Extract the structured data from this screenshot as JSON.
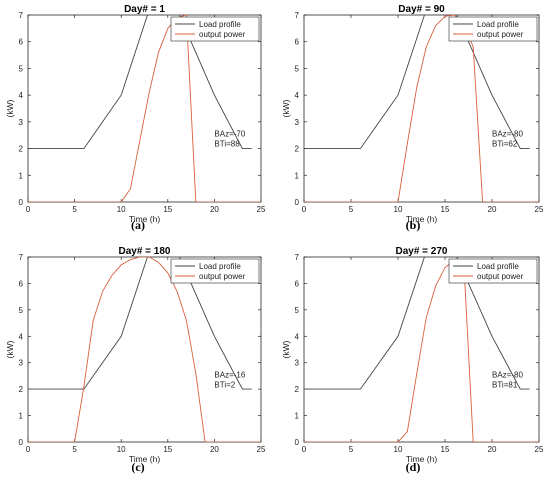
{
  "chart_data": [
    {
      "type": "line",
      "subfigure": "(a)",
      "title": "Day# = 1",
      "xlabel": "Time (h)",
      "ylabel": "(kW)",
      "xlim": [
        0,
        25
      ],
      "ylim": [
        0,
        7
      ],
      "xticks": [
        "0",
        "5",
        "10",
        "15",
        "20",
        "25"
      ],
      "yticks": [
        "0",
        "1",
        "2",
        "3",
        "4",
        "5",
        "6",
        "7"
      ],
      "annotations": [
        "BAz=-70",
        "BTi=88"
      ],
      "legend_position": "top-right",
      "series": [
        {
          "name": "Load profile",
          "color": "#444444",
          "x": [
            0,
            6,
            10,
            13,
            16,
            20,
            23,
            24
          ],
          "y": [
            2,
            2,
            4,
            7.2,
            7.2,
            4,
            2,
            2
          ]
        },
        {
          "name": "output power",
          "color": "#d9603b",
          "x": [
            0,
            10,
            11,
            12,
            13,
            14,
            15,
            16,
            17,
            18,
            25
          ],
          "y": [
            0,
            0,
            0.5,
            2.3,
            4.1,
            5.6,
            6.5,
            6.9,
            7.0,
            0,
            0
          ]
        }
      ]
    },
    {
      "type": "line",
      "subfigure": "(b)",
      "title": "Day# = 90",
      "xlabel": "Time (h)",
      "ylabel": "(kW)",
      "xlim": [
        0,
        25
      ],
      "ylim": [
        0,
        7
      ],
      "xticks": [
        "0",
        "5",
        "10",
        "15",
        "20",
        "25"
      ],
      "yticks": [
        "0",
        "1",
        "2",
        "3",
        "4",
        "5",
        "6",
        "7"
      ],
      "annotations": [
        "BAz=-80",
        "BTi=62"
      ],
      "legend_position": "top-right",
      "series": [
        {
          "name": "Load profile",
          "color": "#444444",
          "x": [
            0,
            6,
            10,
            13,
            16,
            20,
            23,
            24
          ],
          "y": [
            2,
            2,
            4,
            7.2,
            7.2,
            4,
            2,
            2
          ]
        },
        {
          "name": "output power",
          "color": "#d9603b",
          "x": [
            0,
            10,
            11,
            12,
            13,
            14,
            15,
            16,
            17,
            18,
            19,
            25
          ],
          "y": [
            0,
            0,
            2.2,
            4.3,
            5.8,
            6.6,
            6.95,
            7.0,
            6.7,
            5.8,
            0,
            0
          ]
        }
      ]
    },
    {
      "type": "line",
      "subfigure": "(c)",
      "title": "Day# = 180",
      "xlabel": "Time (h)",
      "ylabel": "(kW)",
      "xlim": [
        0,
        25
      ],
      "ylim": [
        0,
        7
      ],
      "xticks": [
        "0",
        "5",
        "10",
        "15",
        "20",
        "25"
      ],
      "yticks": [
        "0",
        "1",
        "2",
        "3",
        "4",
        "5",
        "6",
        "7"
      ],
      "annotations": [
        "BAz=-16",
        "BTi=2"
      ],
      "legend_position": "top-right",
      "series": [
        {
          "name": "Load profile",
          "color": "#444444",
          "x": [
            0,
            6,
            10,
            13,
            16,
            20,
            23,
            24
          ],
          "y": [
            2,
            2,
            4,
            7.2,
            7.2,
            4,
            2,
            2
          ]
        },
        {
          "name": "output power",
          "color": "#d9603b",
          "x": [
            0,
            5,
            6,
            7,
            8,
            9,
            10,
            11,
            12,
            13,
            14,
            15,
            16,
            17,
            18,
            19,
            25
          ],
          "y": [
            0,
            0,
            2.1,
            4.6,
            5.7,
            6.3,
            6.7,
            6.9,
            7.0,
            7.0,
            6.8,
            6.4,
            5.7,
            4.6,
            2.6,
            0,
            0
          ]
        }
      ]
    },
    {
      "type": "line",
      "subfigure": "(d)",
      "title": "Day# = 270",
      "xlabel": "Time (h)",
      "ylabel": "(kW)",
      "xlim": [
        0,
        25
      ],
      "ylim": [
        0,
        7
      ],
      "xticks": [
        "0",
        "5",
        "10",
        "15",
        "20",
        "25"
      ],
      "yticks": [
        "0",
        "1",
        "2",
        "3",
        "4",
        "5",
        "6",
        "7"
      ],
      "annotations": [
        "BAz=-80",
        "BTi=81"
      ],
      "legend_position": "top-right",
      "series": [
        {
          "name": "Load profile",
          "color": "#444444",
          "x": [
            0,
            6,
            10,
            13,
            16,
            20,
            23,
            24
          ],
          "y": [
            2,
            2,
            4,
            7.2,
            7.2,
            4,
            2,
            2
          ]
        },
        {
          "name": "output power",
          "color": "#d9603b",
          "x": [
            0,
            10,
            11,
            12,
            13,
            14,
            15,
            16,
            17,
            18,
            25
          ],
          "y": [
            0,
            0,
            0.4,
            2.6,
            4.7,
            5.9,
            6.6,
            6.9,
            6.8,
            0,
            0
          ]
        }
      ]
    }
  ]
}
